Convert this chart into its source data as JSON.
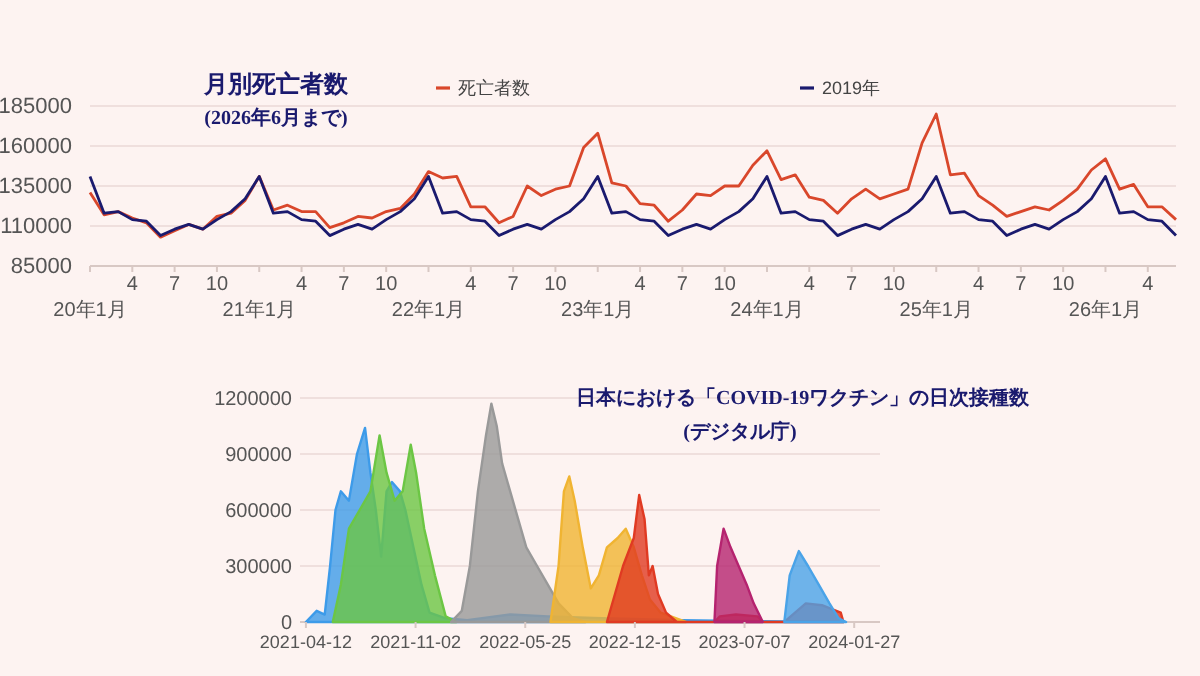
{
  "chart_data": [
    {
      "type": "line",
      "title": "月別死亡者数",
      "subtitle": "(2026年6月まで)",
      "categories": [
        "20年1月",
        null,
        null,
        "4",
        null,
        null,
        "7",
        null,
        null,
        "10",
        null,
        null,
        "21年1月",
        null,
        null,
        "4",
        null,
        null,
        "7",
        null,
        null,
        "10",
        null,
        null,
        "22年1月",
        null,
        null,
        "4",
        null,
        null,
        "7",
        null,
        null,
        "10",
        null,
        null,
        "23年1月",
        null,
        null,
        "4",
        null,
        null,
        "7",
        null,
        null,
        "10",
        null,
        null,
        "24年1月",
        null,
        null,
        "4",
        null,
        null,
        "7",
        null,
        null,
        "10",
        null,
        null,
        "25年1月",
        null,
        null,
        "4",
        null,
        null,
        "7",
        null,
        null,
        "10",
        null,
        null,
        "26年1月",
        null,
        null,
        "4",
        null,
        null
      ],
      "series": [
        {
          "name": "死亡者数",
          "color": "#d9472b",
          "values": [
            131000,
            117000,
            119000,
            115000,
            112000,
            103000,
            107000,
            111000,
            108000,
            116000,
            118000,
            126000,
            141000,
            120000,
            123000,
            119000,
            119000,
            109000,
            112000,
            116000,
            115000,
            119000,
            121000,
            130000,
            144000,
            140000,
            141000,
            122000,
            122000,
            112000,
            116000,
            135000,
            129000,
            133000,
            135000,
            159000,
            168000,
            137000,
            135000,
            124000,
            123000,
            113000,
            120000,
            130000,
            129000,
            135000,
            135000,
            148000,
            157000,
            139000,
            142000,
            128000,
            126000,
            118000,
            127000,
            133000,
            127000,
            130000,
            133000,
            162000,
            180000,
            142000,
            143000,
            129000,
            123000,
            116000,
            119000,
            122000,
            120000,
            126000,
            133000,
            145000,
            152000,
            133000,
            136000,
            122000,
            122000,
            114000
          ]
        },
        {
          "name": "2019年",
          "color": "#1a1a6e",
          "values": [
            141000,
            118000,
            119000,
            114000,
            113000,
            104000,
            108000,
            111000,
            108000,
            114000,
            119000,
            127000,
            141000,
            118000,
            119000,
            114000,
            113000,
            104000,
            108000,
            111000,
            108000,
            114000,
            119000,
            127000,
            141000,
            118000,
            119000,
            114000,
            113000,
            104000,
            108000,
            111000,
            108000,
            114000,
            119000,
            127000,
            141000,
            118000,
            119000,
            114000,
            113000,
            104000,
            108000,
            111000,
            108000,
            114000,
            119000,
            127000,
            141000,
            118000,
            119000,
            114000,
            113000,
            104000,
            108000,
            111000,
            108000,
            114000,
            119000,
            127000,
            141000,
            118000,
            119000,
            114000,
            113000,
            104000,
            108000,
            111000,
            108000,
            114000,
            119000,
            127000,
            141000,
            118000,
            119000,
            114000,
            113000,
            104000
          ]
        }
      ],
      "ylim": [
        85000,
        185000
      ],
      "yticks": [
        85000,
        110000,
        135000,
        160000,
        185000
      ],
      "grid": "y",
      "legend": "top"
    },
    {
      "type": "area",
      "title": "日本における「COVID-19ワクチン」の日次接種数",
      "subtitle": "(デジタル庁)",
      "xlim": [
        "2021-04-01",
        "2024-03-15"
      ],
      "xticks": [
        {
          "value": "2021-04-12",
          "label": "2021-04-12"
        },
        {
          "value": "2021-11-02",
          "label": "2021-11-02"
        },
        {
          "value": "2022-05-25",
          "label": "2022-05-25"
        },
        {
          "value": "2022-12-15",
          "label": "2022-12-15"
        },
        {
          "value": "2023-07-07",
          "label": "2023-07-07"
        },
        {
          "value": "2024-01-27",
          "label": "2024-01-27"
        }
      ],
      "ylim": [
        0,
        1200000
      ],
      "yticks": [
        0,
        300000,
        600000,
        900000,
        1200000
      ],
      "grid": "y",
      "series": [
        {
          "color": "#3d9be9",
          "x": [
            "2021-04-12",
            "2021-05-02",
            "2021-05-17",
            "2021-05-27",
            "2021-06-06",
            "2021-06-16",
            "2021-07-01",
            "2021-07-16",
            "2021-07-31",
            "2021-08-10",
            "2021-08-20",
            "2021-08-30",
            "2021-09-09",
            "2021-09-19",
            "2021-10-04",
            "2021-10-14",
            "2021-10-29",
            "2021-11-13",
            "2021-11-28",
            "2021-12-28",
            "2022-02-06",
            "2022-04-27",
            "2022-07-06",
            "2022-10-14",
            "2023-03-13",
            "2023-06-21",
            "2024-01-07"
          ],
          "values": [
            0,
            60000,
            40000,
            300000,
            600000,
            700000,
            650000,
            900000,
            1040000,
            800000,
            600000,
            350000,
            700000,
            750000,
            700000,
            600000,
            400000,
            200000,
            50000,
            20000,
            10000,
            40000,
            30000,
            20000,
            10000,
            5000,
            0
          ]
        },
        {
          "color": "#6cc644",
          "x": [
            "2021-06-01",
            "2021-06-16",
            "2021-07-01",
            "2021-07-21",
            "2021-08-10",
            "2021-08-27",
            "2021-09-09",
            "2021-09-24",
            "2021-10-09",
            "2021-10-24",
            "2021-11-03",
            "2021-11-18",
            "2021-12-08",
            "2021-12-28",
            "2022-01-17"
          ],
          "values": [
            0,
            200000,
            500000,
            600000,
            700000,
            1000000,
            800000,
            650000,
            700000,
            950000,
            800000,
            500000,
            250000,
            30000,
            0
          ]
        },
        {
          "color": "#999999",
          "x": [
            "2022-01-07",
            "2022-01-27",
            "2022-02-11",
            "2022-02-26",
            "2022-03-13",
            "2022-03-23",
            "2022-04-02",
            "2022-04-12",
            "2022-04-27",
            "2022-05-12",
            "2022-05-27",
            "2022-06-16",
            "2022-07-06",
            "2022-07-26",
            "2022-08-22",
            "2022-09-14"
          ],
          "values": [
            0,
            60000,
            300000,
            700000,
            1000000,
            1170000,
            1050000,
            850000,
            700000,
            550000,
            400000,
            300000,
            200000,
            100000,
            20000,
            0
          ]
        },
        {
          "color": "#f0b432",
          "x": [
            "2022-07-11",
            "2022-07-26",
            "2022-08-05",
            "2022-08-15",
            "2022-08-25",
            "2022-09-09",
            "2022-09-24",
            "2022-10-09",
            "2022-10-24",
            "2022-11-13",
            "2022-11-28",
            "2022-12-13",
            "2022-12-28",
            "2023-01-12",
            "2023-02-01",
            "2023-03-20"
          ],
          "values": [
            0,
            300000,
            700000,
            780000,
            650000,
            400000,
            180000,
            250000,
            400000,
            450000,
            500000,
            400000,
            250000,
            120000,
            50000,
            0
          ]
        },
        {
          "color": "#e03a22",
          "x": [
            "2022-10-24",
            "2022-11-08",
            "2022-11-23",
            "2022-12-13",
            "2022-12-23",
            "2023-01-02",
            "2023-01-10",
            "2023-01-17",
            "2023-01-27",
            "2023-02-11",
            "2023-03-03",
            "2023-05-12",
            "2023-05-22",
            "2023-06-21",
            "2023-07-31",
            "2023-08-10",
            "2023-09-19",
            "2023-10-09",
            "2023-10-29",
            "2023-11-28",
            "2024-01-02",
            "2024-01-07"
          ],
          "values": [
            0,
            150000,
            300000,
            450000,
            680000,
            550000,
            250000,
            300000,
            150000,
            50000,
            0,
            0,
            30000,
            40000,
            30000,
            0,
            0,
            50000,
            100000,
            90000,
            50000,
            0
          ]
        },
        {
          "color": "#b5236f",
          "x": [
            "2023-05-12",
            "2023-05-17",
            "2023-05-29",
            "2023-06-11",
            "2023-06-26",
            "2023-07-11",
            "2023-07-24",
            "2023-08-10"
          ],
          "values": [
            0,
            300000,
            500000,
            400000,
            300000,
            200000,
            100000,
            0
          ]
        },
        {
          "color": "#4aa3e8",
          "x": [
            "2023-09-19",
            "2023-09-29",
            "2023-10-16",
            "2023-11-02",
            "2023-11-22",
            "2023-12-12",
            "2023-12-29",
            "2024-01-12"
          ],
          "values": [
            0,
            250000,
            380000,
            300000,
            200000,
            100000,
            20000,
            0
          ]
        }
      ]
    }
  ]
}
